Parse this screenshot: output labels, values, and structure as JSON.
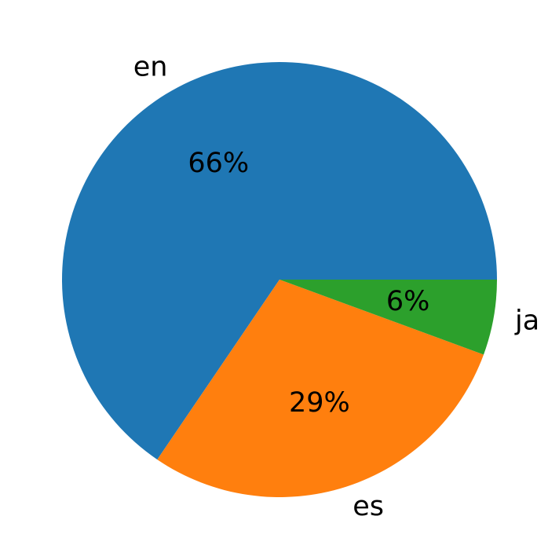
{
  "chart_data": {
    "type": "pie",
    "categories": [
      "en",
      "es",
      "ja"
    ],
    "values": [
      65.5,
      28.9,
      5.6
    ],
    "percent_labels": [
      "66%",
      "29%",
      "6%"
    ],
    "colors": [
      "#1f77b4",
      "#ff7f0e",
      "#2ca02c"
    ],
    "start_angle_deg": 0,
    "direction": "counterclockwise",
    "legend": "none"
  }
}
